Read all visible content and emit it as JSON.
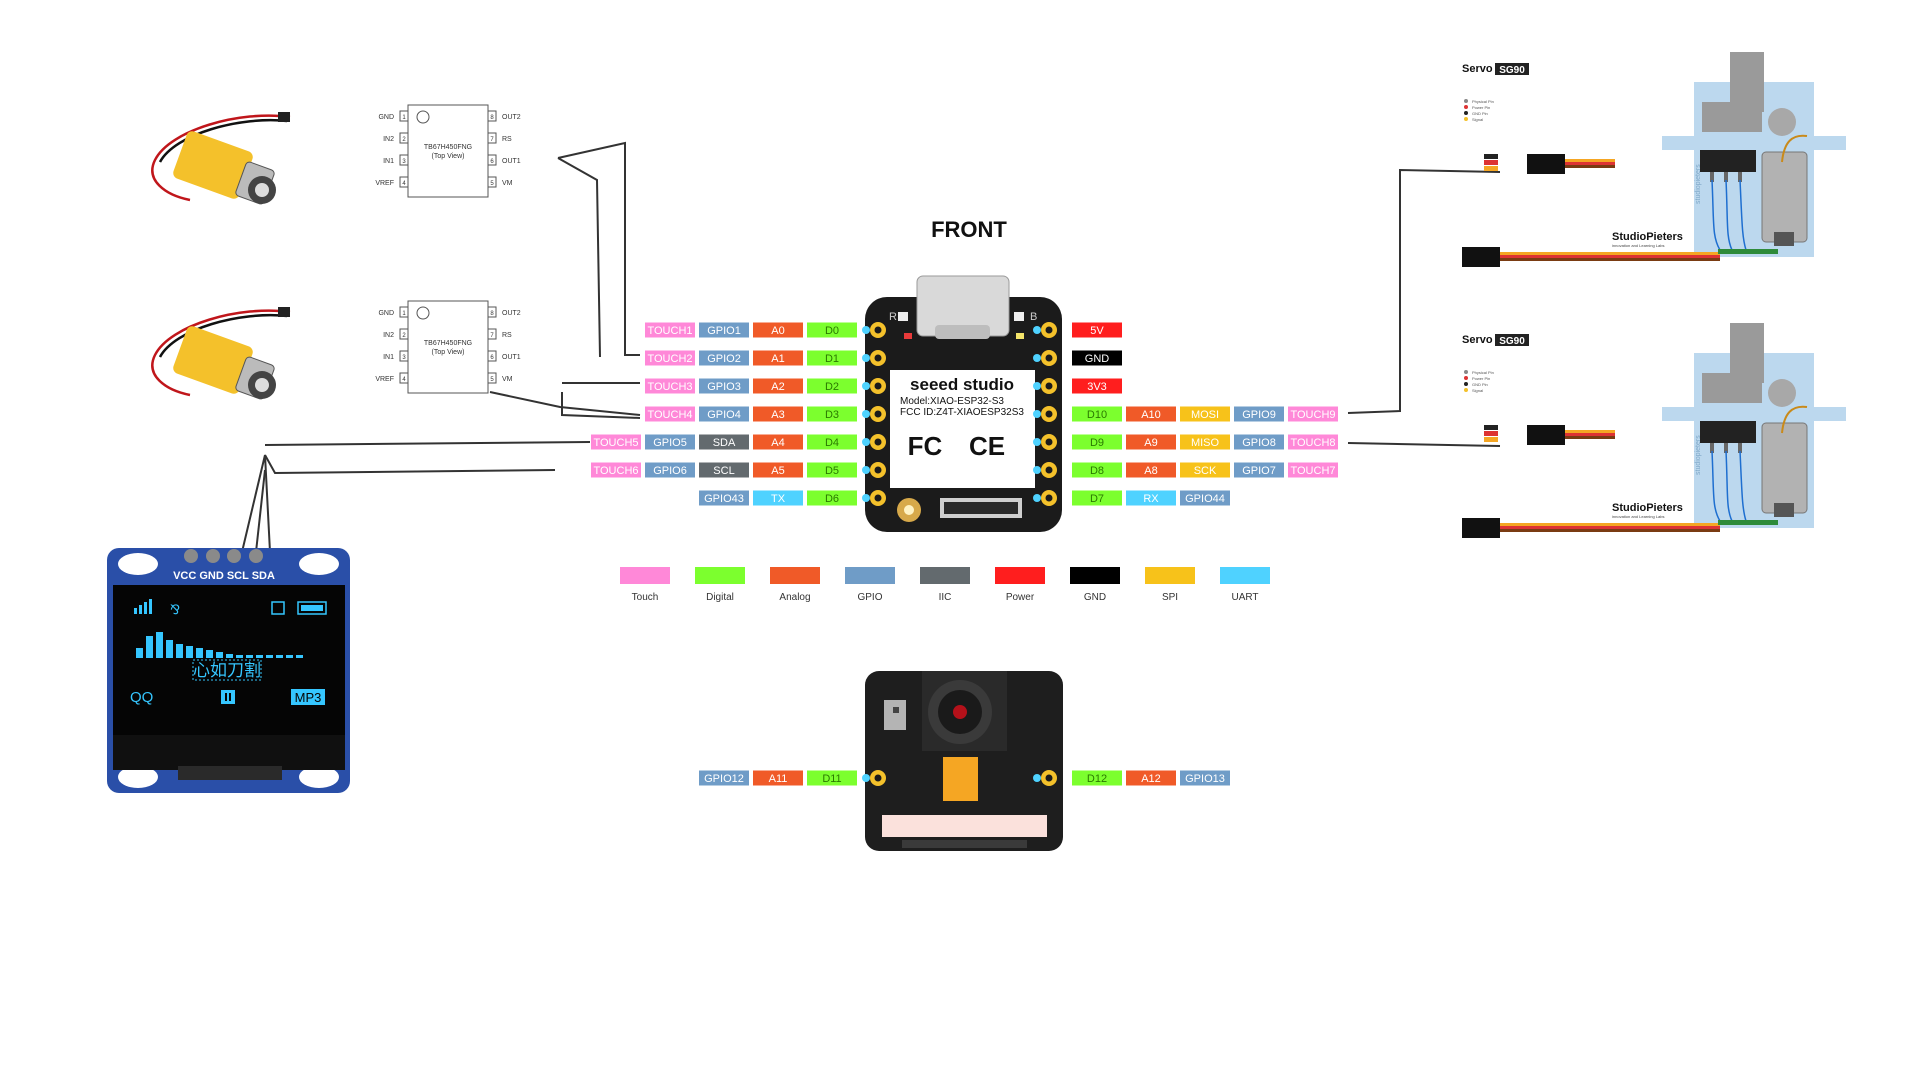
{
  "title": "FRONT",
  "brand": "seeed studio",
  "model": "Model:XIAO-ESP32-S3",
  "fcc_id": "FCC ID:Z4T-XIAOESP32S3",
  "cert_fc": "FC",
  "cert_ce": "CE",
  "corner_r": "R",
  "corner_b": "B",
  "colors": {
    "touch": "#ff88d8",
    "digital": "#7cff2e",
    "analog": "#f05a28",
    "gpio": "#6f9cc7",
    "iic": "#636a6e",
    "power": "#ff1e1e",
    "gnd": "#000000",
    "spi": "#f7c21a",
    "uart": "#4fd2ff"
  },
  "left_pins": [
    [
      "TOUCH1:touch",
      "GPIO1:gpio",
      "A0:analog",
      "D0:digital"
    ],
    [
      "TOUCH2:touch",
      "GPIO2:gpio",
      "A1:analog",
      "D1:digital"
    ],
    [
      "TOUCH3:touch",
      "GPIO3:gpio",
      "A2:analog",
      "D2:digital"
    ],
    [
      "TOUCH4:touch",
      "GPIO4:gpio",
      "A3:analog",
      "D3:digital"
    ],
    [
      "TOUCH5:touch",
      "GPIO5:gpio",
      "SDA:iic",
      "A4:analog",
      "D4:digital"
    ],
    [
      "TOUCH6:touch",
      "GPIO6:gpio",
      "SCL:iic",
      "A5:analog",
      "D5:digital"
    ],
    [
      "GPIO43:gpio",
      "TX:uart",
      "D6:digital"
    ]
  ],
  "right_pins": [
    [
      "5V:power"
    ],
    [
      "GND:gnd"
    ],
    [
      "3V3:power"
    ],
    [
      "D10:digital",
      "A10:analog",
      "MOSI:spi",
      "GPIO9:gpio",
      "TOUCH9:touch"
    ],
    [
      "D9:digital",
      "A9:analog",
      "MISO:spi",
      "GPIO8:gpio",
      "TOUCH8:touch"
    ],
    [
      "D8:digital",
      "A8:analog",
      "SCK:spi",
      "GPIO7:gpio",
      "TOUCH7:touch"
    ],
    [
      "D7:digital",
      "RX:uart",
      "GPIO44:gpio"
    ]
  ],
  "camera_left_pins": [
    "GPIO12:gpio",
    "A11:analog",
    "D11:digital"
  ],
  "camera_right_pins": [
    "D12:digital",
    "A12:analog",
    "GPIO13:gpio"
  ],
  "legend": [
    {
      "label": "Touch",
      "key": "touch"
    },
    {
      "label": "Digital",
      "key": "digital"
    },
    {
      "label": "Analog",
      "key": "analog"
    },
    {
      "label": "GPIO",
      "key": "gpio"
    },
    {
      "label": "IIC",
      "key": "iic"
    },
    {
      "label": "Power",
      "key": "power"
    },
    {
      "label": "GND",
      "key": "gnd"
    },
    {
      "label": "SPI",
      "key": "spi"
    },
    {
      "label": "UART",
      "key": "uart"
    }
  ],
  "driver_chip": {
    "part": "TB67H450FNG",
    "view": "(Top View)",
    "left_pins": [
      "GND",
      "IN2",
      "IN1",
      "VREF"
    ],
    "right_pins": [
      "OUT2",
      "RS",
      "OUT1",
      "VM"
    ],
    "left_nums": [
      "1",
      "2",
      "3",
      "4"
    ],
    "right_nums": [
      "8",
      "7",
      "6",
      "5"
    ]
  },
  "oled": {
    "header_pins": "VCC GND SCL SDA",
    "song": "心如刀割",
    "left_app": "QQ",
    "right_app": "MP3"
  },
  "servo": {
    "name": "Servo",
    "model": "SG90",
    "brand": "StudioPieters",
    "tagline": "innovation and Learning Labs",
    "pin_notes": [
      "Physical Pin",
      "Power Pin",
      "GND Pin",
      "Signal"
    ],
    "vertical_brand": "studiopieters"
  }
}
